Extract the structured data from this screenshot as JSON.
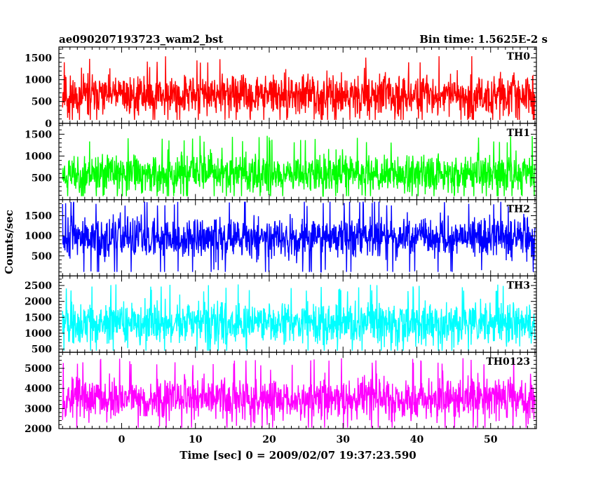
{
  "header": {
    "title": "ae090207193723_wam2_bst",
    "bin_time": "Bin time: 1.5625E-2 s"
  },
  "axes": {
    "xlabel": "Time [sec] 0 = 2009/02/07 19:37:23.590",
    "ylabel": "Counts/sec"
  },
  "chart_data": [
    {
      "type": "line",
      "name": "TH0",
      "color": "#ff0000",
      "x_range": [
        -8.5,
        56.2
      ],
      "data_x_range": [
        -8.0,
        56.0
      ],
      "ylim": [
        0,
        1750
      ],
      "yticks": [
        0,
        500,
        1000,
        1500
      ],
      "approx_baseline": 650,
      "approx_min": 80,
      "approx_max": 1700,
      "seed": 11
    },
    {
      "type": "line",
      "name": "TH1",
      "color": "#00ff00",
      "x_range": [
        -8.5,
        56.2
      ],
      "data_x_range": [
        -8.0,
        56.0
      ],
      "ylim": [
        0,
        1750
      ],
      "yticks": [
        500,
        1000,
        1500
      ],
      "approx_baseline": 600,
      "approx_min": 80,
      "approx_max": 1650,
      "seed": 23
    },
    {
      "type": "line",
      "name": "TH2",
      "color": "#0000ff",
      "x_range": [
        -8.5,
        56.2
      ],
      "data_x_range": [
        -8.0,
        56.0
      ],
      "ylim": [
        0,
        1900
      ],
      "yticks": [
        500,
        1000,
        1500
      ],
      "approx_baseline": 950,
      "approx_min": 100,
      "approx_max": 1850,
      "seed": 37
    },
    {
      "type": "line",
      "name": "TH3",
      "color": "#00ffff",
      "x_range": [
        -8.5,
        56.2
      ],
      "data_x_range": [
        -8.0,
        56.0
      ],
      "ylim": [
        400,
        2800
      ],
      "yticks": [
        500,
        1000,
        1500,
        2000,
        2500
      ],
      "approx_baseline": 1300,
      "approx_min": 450,
      "approx_max": 2700,
      "seed": 41
    },
    {
      "type": "line",
      "name": "TH0123",
      "color": "#ff00ff",
      "x_range": [
        -8.5,
        56.2
      ],
      "data_x_range": [
        -8.0,
        56.0
      ],
      "ylim": [
        2000,
        5800
      ],
      "yticks": [
        2000,
        3000,
        4000,
        5000
      ],
      "approx_baseline": 3500,
      "approx_min": 2050,
      "approx_max": 5700,
      "seed": 53
    }
  ],
  "x_axis": {
    "ticks": [
      0,
      10,
      20,
      30,
      40,
      50
    ]
  }
}
